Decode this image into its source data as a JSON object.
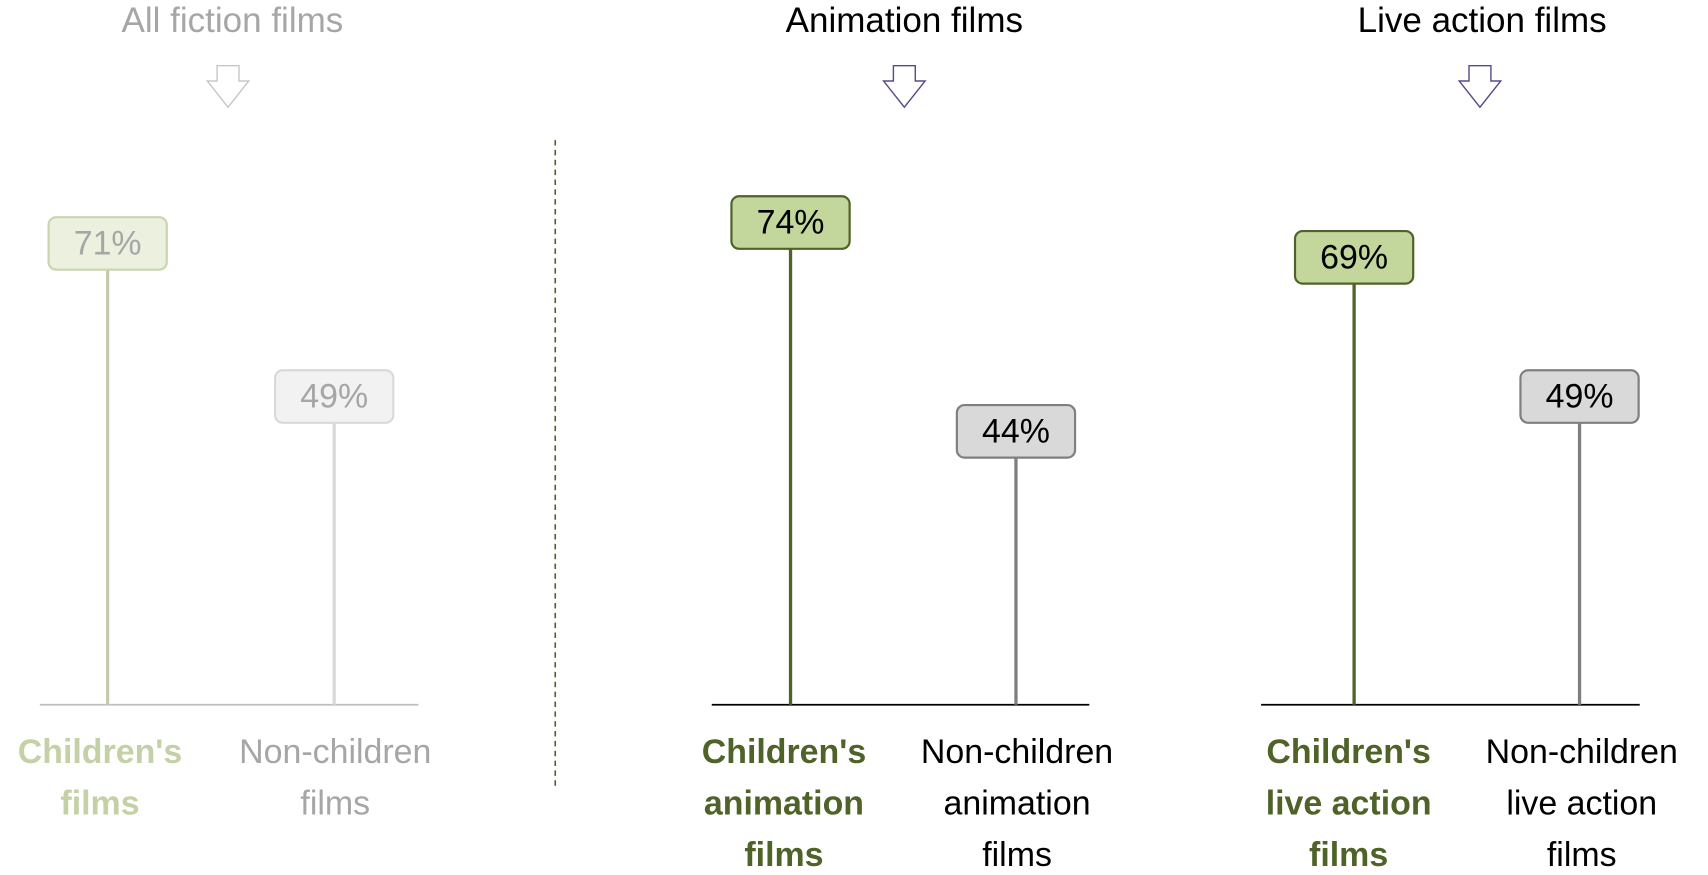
{
  "chart_data": [
    {
      "type": "lollipop",
      "title": "All  fiction films",
      "title_color": "#a6a6a6",
      "arrow_color": "#c8c8c8",
      "categories": [
        [
          "Children's",
          "films"
        ],
        [
          "Non-children",
          "films"
        ]
      ],
      "values": [
        71,
        49
      ],
      "value_labels": [
        "71%",
        "49%"
      ],
      "colors": [
        "#ebf1de",
        "#f2f2f2"
      ],
      "edge_colors": [
        "#c9d5ae",
        "#d9d9d9"
      ],
      "line_colors": [
        "#c4cbb0",
        "#d9d9d9"
      ],
      "value_text_colors": [
        "#a6a6a6",
        "#a6a6a6"
      ],
      "label_colors": [
        "#c4d1a6",
        "#a6a6a6"
      ],
      "label_bold": [
        true,
        false
      ],
      "axis_color": "#bfbfbf"
    },
    {
      "type": "lollipop",
      "title": "Animation films",
      "title_color": "#000000",
      "arrow_color": "#5b4a8b",
      "categories": [
        [
          "Children's",
          "animation",
          "films"
        ],
        [
          "Non-children",
          "animation",
          "films"
        ]
      ],
      "values": [
        74,
        44
      ],
      "value_labels": [
        "74%",
        "44%"
      ],
      "colors": [
        "#c3d69b",
        "#d9d9d9"
      ],
      "edge_colors": [
        "#4f6228",
        "#7f7f7f"
      ],
      "line_colors": [
        "#4f6228",
        "#7f7f7f"
      ],
      "value_text_colors": [
        "#000000",
        "#000000"
      ],
      "label_colors": [
        "#4f6228",
        "#000000"
      ],
      "label_bold": [
        true,
        false
      ],
      "axis_color": "#000000"
    },
    {
      "type": "lollipop",
      "title": "Live action films",
      "title_color": "#000000",
      "arrow_color": "#5b4a8b",
      "categories": [
        [
          "Children's",
          "live action",
          "films"
        ],
        [
          "Non-children",
          "live action",
          "films"
        ]
      ],
      "values": [
        69,
        49
      ],
      "value_labels": [
        "69%",
        "49%"
      ],
      "colors": [
        "#c3d69b",
        "#d9d9d9"
      ],
      "edge_colors": [
        "#4f6228",
        "#7f7f7f"
      ],
      "line_colors": [
        "#4f6228",
        "#7f7f7f"
      ],
      "value_text_colors": [
        "#000000",
        "#000000"
      ],
      "label_colors": [
        "#4f6228",
        "#000000"
      ],
      "label_bold": [
        true,
        false
      ],
      "axis_color": "#000000"
    }
  ]
}
